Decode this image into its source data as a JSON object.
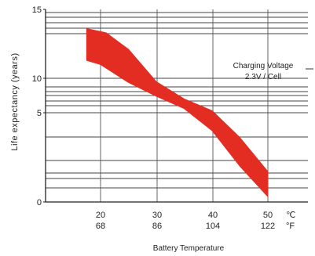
{
  "chart_data": {
    "type": "area",
    "title": "",
    "xlabel": "Battery Temperature",
    "ylabel": "Life expectancy (years)",
    "x_ticks": [
      {
        "c": "20",
        "f": "68"
      },
      {
        "c": "30",
        "f": "86"
      },
      {
        "c": "40",
        "f": "104"
      },
      {
        "c": "50",
        "f": "122"
      }
    ],
    "x_unit_c": "℃",
    "x_unit_f": "°F",
    "y_ticks": [
      {
        "label": "15",
        "value": 15
      },
      {
        "label": "10",
        "value": 10
      },
      {
        "label": "5",
        "value": 5
      },
      {
        "label": "0",
        "value": 0
      }
    ],
    "annotation": {
      "line1": "Charging Voltage",
      "line2": "2.3V / Cell"
    },
    "series": [
      {
        "upper": [
          [
            17.5,
            13.6
          ],
          [
            21,
            13.3
          ],
          [
            25,
            12.1
          ],
          [
            30,
            9.5
          ],
          [
            35,
            7.0
          ],
          [
            40,
            5.3
          ],
          [
            45,
            3.6
          ],
          [
            50,
            1.7
          ]
        ],
        "lower": [
          [
            17.5,
            11.3
          ],
          [
            20,
            11.0
          ],
          [
            25,
            9.4
          ],
          [
            30,
            7.4
          ],
          [
            35,
            5.6
          ],
          [
            40,
            4.0
          ],
          [
            45,
            2.0
          ],
          [
            50,
            0.3
          ]
        ]
      }
    ],
    "color": "#e32d22",
    "grid": true
  }
}
